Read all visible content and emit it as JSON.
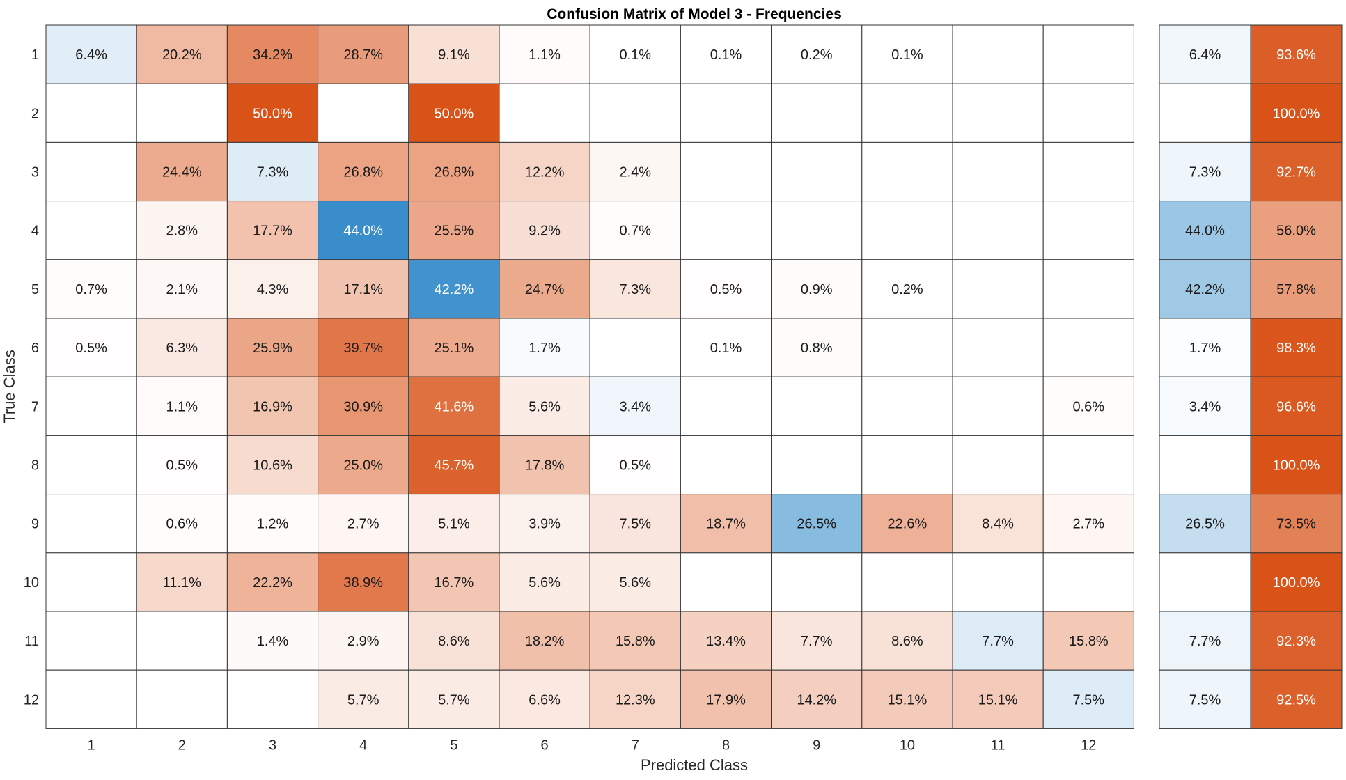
{
  "chart_data": {
    "type": "heatmap",
    "title": "Confusion Matrix of Model 3 - Frequencies",
    "xlabel": "Predicted Class",
    "ylabel": "True Class",
    "row_labels": [
      "1",
      "2",
      "3",
      "4",
      "5",
      "6",
      "7",
      "8",
      "9",
      "10",
      "11",
      "12"
    ],
    "col_labels": [
      "1",
      "2",
      "3",
      "4",
      "5",
      "6",
      "7",
      "8",
      "9",
      "10",
      "11",
      "12"
    ],
    "matrix": [
      [
        6.4,
        20.2,
        34.2,
        28.7,
        9.1,
        1.1,
        0.1,
        0.1,
        0.2,
        0.1,
        null,
        null
      ],
      [
        null,
        null,
        50.0,
        null,
        50.0,
        null,
        null,
        null,
        null,
        null,
        null,
        null
      ],
      [
        null,
        24.4,
        7.3,
        26.8,
        26.8,
        12.2,
        2.4,
        null,
        null,
        null,
        null,
        null
      ],
      [
        null,
        2.8,
        17.7,
        44.0,
        25.5,
        9.2,
        0.7,
        null,
        null,
        null,
        null,
        null
      ],
      [
        0.7,
        2.1,
        4.3,
        17.1,
        42.2,
        24.7,
        7.3,
        0.5,
        0.9,
        0.2,
        null,
        null
      ],
      [
        0.5,
        6.3,
        25.9,
        39.7,
        25.1,
        1.7,
        null,
        0.1,
        0.8,
        null,
        null,
        null
      ],
      [
        null,
        1.1,
        16.9,
        30.9,
        41.6,
        5.6,
        3.4,
        null,
        null,
        null,
        null,
        0.6
      ],
      [
        null,
        0.5,
        10.6,
        25.0,
        45.7,
        17.8,
        0.5,
        null,
        null,
        null,
        null,
        null
      ],
      [
        null,
        0.6,
        1.2,
        2.7,
        5.1,
        3.9,
        7.5,
        18.7,
        26.5,
        22.6,
        8.4,
        2.7
      ],
      [
        null,
        11.1,
        22.2,
        38.9,
        16.7,
        5.6,
        5.6,
        null,
        null,
        null,
        null,
        null
      ],
      [
        null,
        null,
        1.4,
        2.9,
        8.6,
        18.2,
        15.8,
        13.4,
        7.7,
        8.6,
        7.7,
        15.8
      ],
      [
        null,
        null,
        null,
        5.7,
        5.7,
        6.6,
        12.3,
        17.9,
        14.2,
        15.1,
        15.1,
        7.5
      ]
    ],
    "row_summary": [
      [
        6.4,
        93.6
      ],
      [
        null,
        100.0
      ],
      [
        7.3,
        92.7
      ],
      [
        44.0,
        56.0
      ],
      [
        42.2,
        57.8
      ],
      [
        1.7,
        98.3
      ],
      [
        3.4,
        96.6
      ],
      [
        null,
        100.0
      ],
      [
        26.5,
        73.5
      ],
      [
        null,
        100.0
      ],
      [
        7.7,
        92.3
      ],
      [
        7.5,
        92.5
      ]
    ],
    "value_suffix": "%",
    "colors": {
      "correct": "#1f7ec4",
      "incorrect": "#d95319",
      "grid": "#333333",
      "text_dark": "#1a1a1a",
      "text_light": "#ffffff",
      "label": "#262626"
    }
  }
}
